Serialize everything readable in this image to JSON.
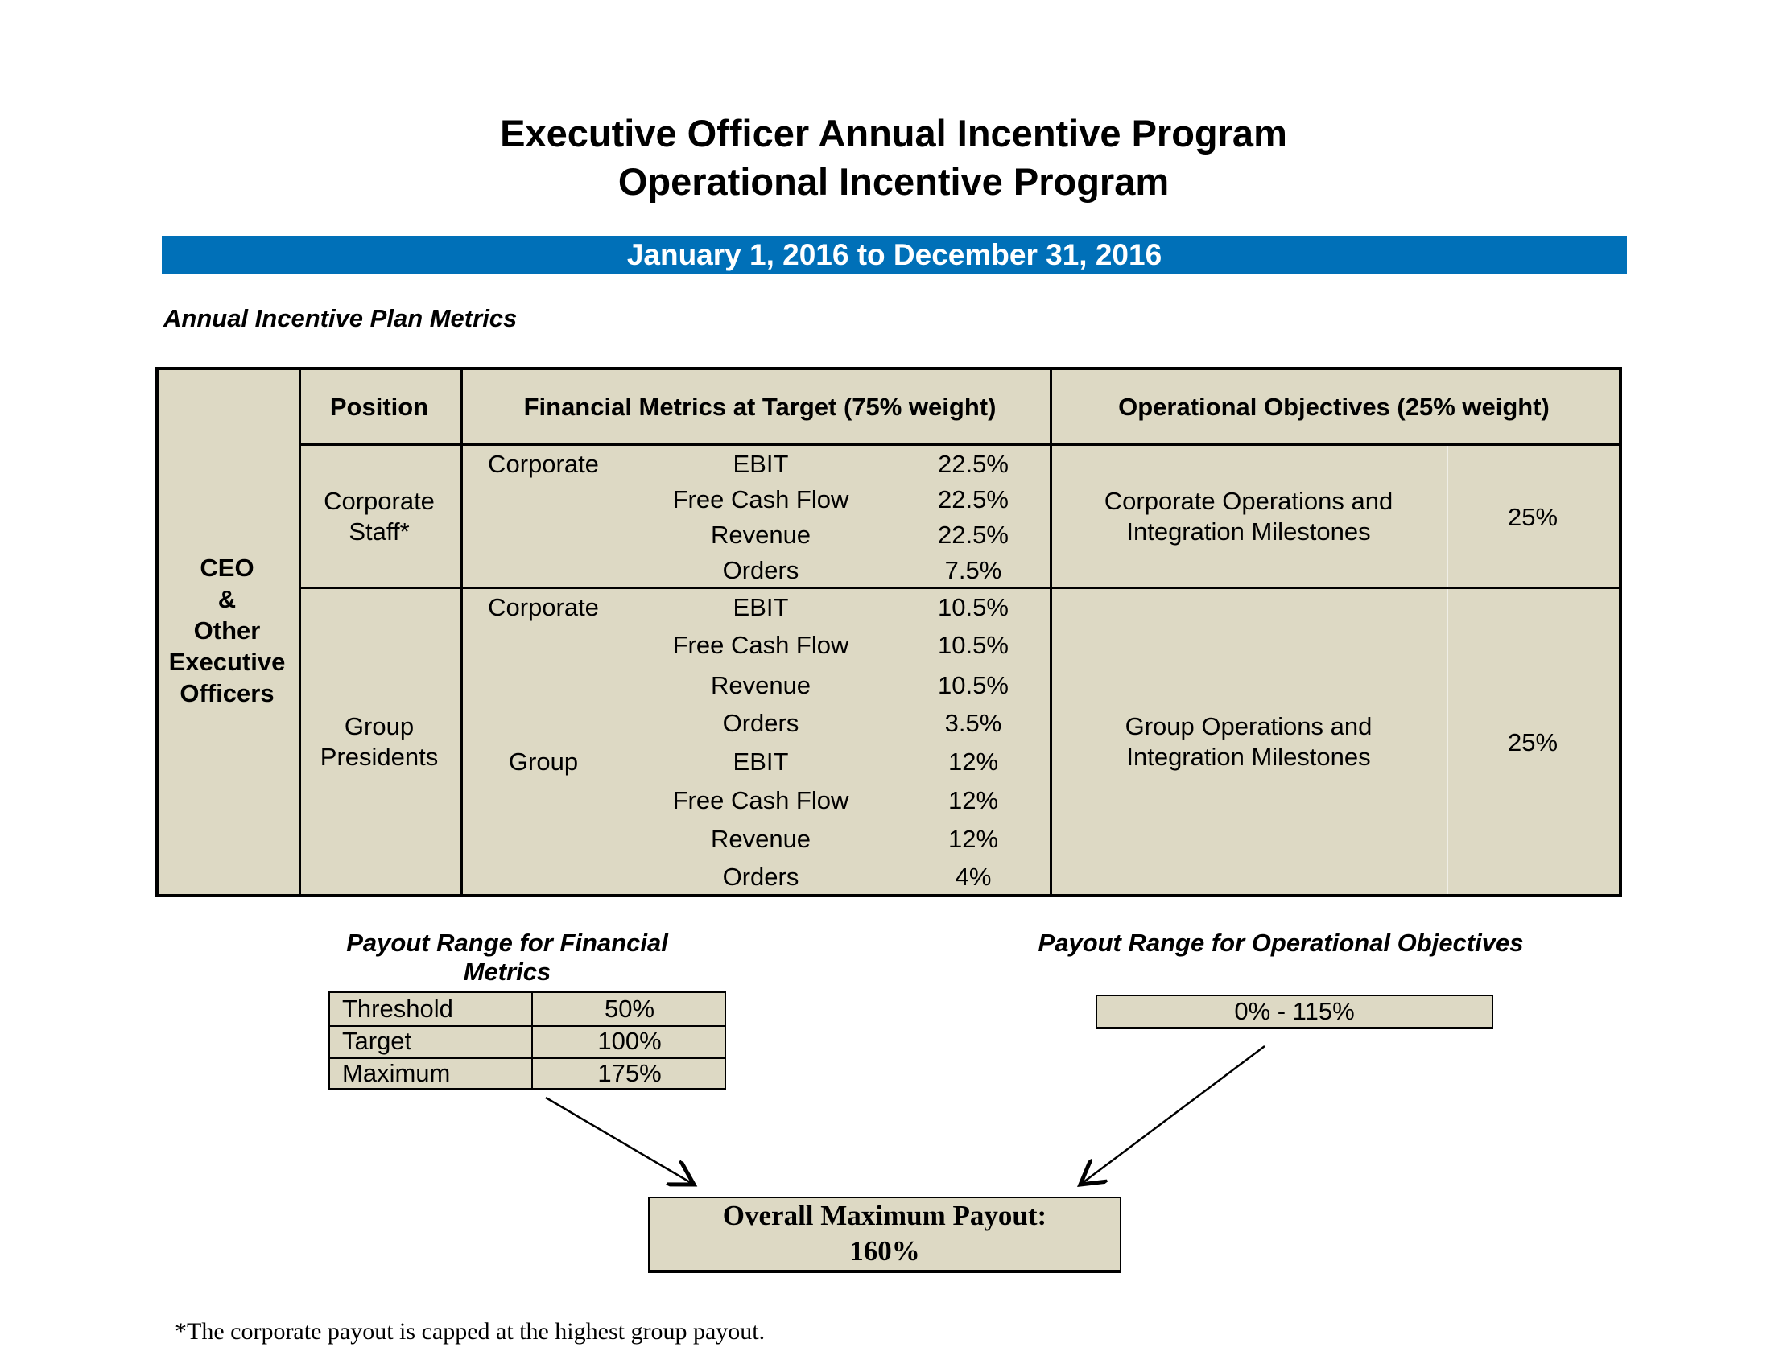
{
  "title_line1": "Executive Officer Annual Incentive Program",
  "title_line2": "Operational Incentive Program",
  "period": "January 1, 2016 to December 31, 2016",
  "section_title": "Annual Incentive Plan Metrics",
  "colors": {
    "band": "#0070b8",
    "table_fill": "#ddd9c4"
  },
  "table": {
    "role_label": [
      "CEO",
      "&",
      "Other",
      "Executive",
      "Officers"
    ],
    "headers": {
      "position": "Position",
      "financial": "Financial Metrics at Target (75% weight)",
      "operational": "Operational Objectives (25% weight)"
    },
    "corporate_staff": {
      "position": [
        "Corporate",
        "Staff*"
      ],
      "metrics": [
        {
          "level": "Corporate",
          "metric": "EBIT",
          "weight": "22.5%"
        },
        {
          "level": "",
          "metric": "Free Cash Flow",
          "weight": "22.5%"
        },
        {
          "level": "",
          "metric": "Revenue",
          "weight": "22.5%"
        },
        {
          "level": "",
          "metric": "Orders",
          "weight": "7.5%"
        }
      ],
      "objective": [
        "Corporate Operations and",
        "Integration Milestones"
      ],
      "objective_weight": "25%"
    },
    "group_presidents": {
      "position": [
        "Group",
        "Presidents"
      ],
      "metrics": [
        {
          "level": "Corporate",
          "metric": "EBIT",
          "weight": "10.5%"
        },
        {
          "level": "",
          "metric": "Free Cash Flow",
          "weight": "10.5%"
        },
        {
          "level": "",
          "metric": "Revenue",
          "weight": "10.5%"
        },
        {
          "level": "",
          "metric": "Orders",
          "weight": "3.5%"
        },
        {
          "level": "Group",
          "metric": "EBIT",
          "weight": "12%"
        },
        {
          "level": "",
          "metric": "Free Cash Flow",
          "weight": "12%"
        },
        {
          "level": "",
          "metric": "Revenue",
          "weight": "12%"
        },
        {
          "level": "",
          "metric": "Orders",
          "weight": "4%"
        }
      ],
      "objective": [
        "Group Operations and",
        "Integration Milestones"
      ],
      "objective_weight": "25%"
    }
  },
  "payout_financial": {
    "title": "Payout Range for Financial Metrics",
    "rows": [
      {
        "label": "Threshold",
        "value": "50%"
      },
      {
        "label": "Target",
        "value": "100%"
      },
      {
        "label": "Maximum",
        "value": "175%"
      }
    ]
  },
  "payout_operational": {
    "title": "Payout Range for Operational Objectives",
    "range": "0% - 115%"
  },
  "overall": {
    "line1": "Overall Maximum Payout:",
    "line2": "160%"
  },
  "footnote": "*The corporate payout is capped at the highest group payout."
}
